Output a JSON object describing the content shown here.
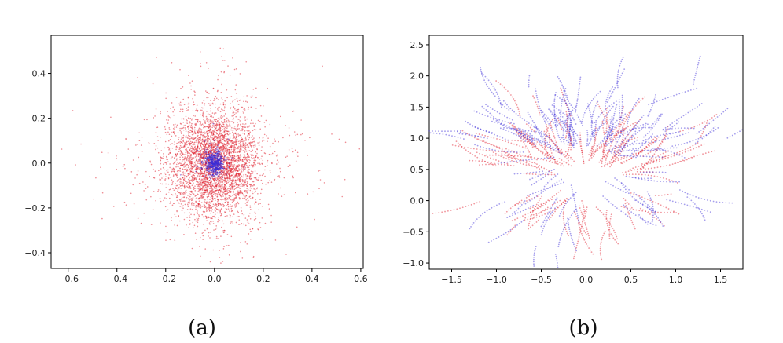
{
  "chart_data": [
    {
      "type": "scatter",
      "caption": "(a)",
      "xlim": [
        -0.67,
        0.61
      ],
      "ylim": [
        -0.47,
        0.57
      ],
      "x_ticks": [
        -0.6,
        -0.4,
        -0.2,
        0.0,
        0.2,
        0.4,
        0.6
      ],
      "x_tick_labels": [
        "−0.6",
        "−0.4",
        "−0.2",
        "0.0",
        "0.2",
        "0.4",
        "0.6"
      ],
      "y_ticks": [
        -0.4,
        -0.2,
        0.0,
        0.2,
        0.4
      ],
      "y_tick_labels": [
        "−0.4",
        "−0.2",
        "0.0",
        "0.2",
        "0.4"
      ],
      "grid": false,
      "series": [
        {
          "color": "#e01b2a",
          "distribution": {
            "center": [
              0.0,
              0.0
            ],
            "std_x": 0.09,
            "std_y": 0.12,
            "count": 4200
          }
        },
        {
          "color": "#3a2bd8",
          "distribution": {
            "center": [
              0.0,
              0.0
            ],
            "std_x": 0.018,
            "std_y": 0.025,
            "count": 700
          }
        }
      ]
    },
    {
      "type": "scatter",
      "caption": "(b)",
      "xlim": [
        -1.75,
        1.75
      ],
      "ylim": [
        -1.1,
        2.65
      ],
      "x_ticks": [
        -1.5,
        -1.0,
        -0.5,
        0.0,
        0.5,
        1.0,
        1.5
      ],
      "x_tick_labels": [
        "−1.5",
        "−1.0",
        "−0.5",
        "0.0",
        "0.5",
        "1.0",
        "1.5"
      ],
      "y_ticks": [
        -1.0,
        -0.5,
        0.0,
        0.5,
        1.0,
        1.5,
        2.0,
        2.5
      ],
      "y_tick_labels": [
        "−1.0",
        "−0.5",
        "0.0",
        "0.5",
        "1.0",
        "1.5",
        "2.0",
        "2.5"
      ],
      "grid": false,
      "series": [
        {
          "color": "#e01b2a",
          "distribution": {
            "shape": "trajectories",
            "center": [
              0.0,
              0.3
            ],
            "spread": 0.45,
            "count": 120
          }
        },
        {
          "color": "#3a2bd8",
          "distribution": {
            "shape": "trajectories",
            "center": [
              0.0,
              0.6
            ],
            "spread": 0.5,
            "count": 140
          }
        }
      ]
    }
  ]
}
